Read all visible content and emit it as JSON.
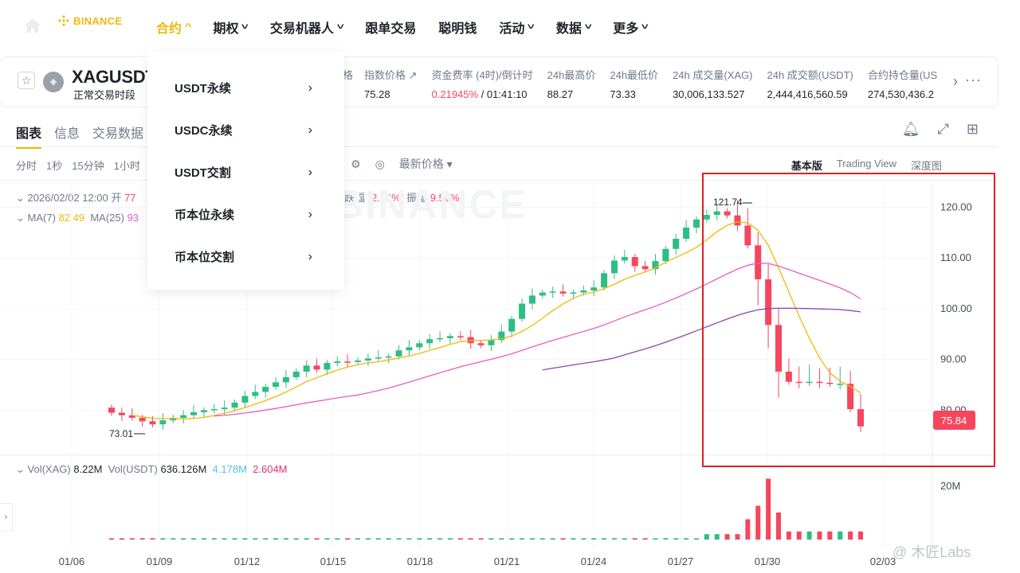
{
  "nav": {
    "logo": "BINANCE",
    "items": [
      {
        "label": "合约",
        "active": true,
        "has_menu": true
      },
      {
        "label": "期权",
        "has_menu": true
      },
      {
        "label": "交易机器人",
        "has_menu": true
      },
      {
        "label": "跟单交易",
        "has_menu": false
      },
      {
        "label": "聪明钱",
        "has_menu": false
      },
      {
        "label": "活动",
        "has_menu": true
      },
      {
        "label": "数据",
        "has_menu": true
      },
      {
        "label": "更多",
        "has_menu": true
      }
    ]
  },
  "dropdown": {
    "items": [
      "USDT永续",
      "USDC永续",
      "USDT交割",
      "币本位永续",
      "币本位交割"
    ]
  },
  "ticker": {
    "symbol": "XAGUSDT",
    "subtitle": "正常交易时段",
    "stats": [
      {
        "key": "指数价格 ↗",
        "value": "75.28"
      },
      {
        "key": "资金费率 (4时)/倒计时",
        "value": "0.21945%",
        "value2": " / 01:41:10"
      },
      {
        "key": "24h最高价",
        "value": "88.27"
      },
      {
        "key": "24h最低价",
        "value": "73.33"
      },
      {
        "key": "24h 成交量(XAG)",
        "value": "30,006,133.527"
      },
      {
        "key": "24h 成交额(USDT)",
        "value": "2,444,416,560.59"
      },
      {
        "key": "合约持仓量(US",
        "value": "274,530,436.2"
      }
    ],
    "partial_key": "格"
  },
  "panel": {
    "tabs": [
      "图表",
      "信息",
      "交易数据"
    ],
    "intervals": [
      "分时",
      "1秒",
      "15分钟",
      "1小时"
    ],
    "price_type": "最新价格",
    "views": [
      "基本版",
      "Trading View",
      "深度图"
    ],
    "ohlc": {
      "time": "2026/02/02 12:00",
      "open_label": "开",
      "open_value": "77"
    },
    "amp": {
      "change_label": "跌幅",
      "change_value": "-2.16%",
      "amp_label": "振幅",
      "amp_value": "9.52%"
    },
    "ma": {
      "ma7_label": "MA(7)",
      "ma7_value": "82.49",
      "ma25_label": "MA(25)",
      "ma25_value": "93"
    },
    "vol": {
      "xag_label": "Vol(XAG)",
      "xag_value": "8.22M",
      "usdt_label": "Vol(USDT)",
      "usdt_value": "636.126M",
      "ma1": "4.178M",
      "ma2": "2.604M"
    },
    "watermark": "BINANCE",
    "credit": "@ 木匠Labs"
  },
  "chart_data": {
    "type": "candlestick",
    "y_axis_ticks": [
      120,
      110,
      100,
      90,
      80
    ],
    "y_tick_labels": [
      "120.00",
      "110.00",
      "100.00",
      "90.00",
      "80.00"
    ],
    "ylim": [
      73,
      124
    ],
    "x_tick_labels": [
      "01/06",
      "01/09",
      "01/12",
      "01/15",
      "01/18",
      "01/21",
      "01/24",
      "01/27",
      "01/30",
      "02/03"
    ],
    "high_marker": "121.74",
    "low_marker": "73.01",
    "last_price": "75.84",
    "volume_tick": "20M",
    "colors": {
      "up": "#2ebd85",
      "down": "#f6465d",
      "ma7": "#f0b90b",
      "ma25": "#e35ec8",
      "ma99": "#8e44ad",
      "highlight": "#e02020"
    },
    "close_series": [
      79.5,
      79,
      78.5,
      77.8,
      77.2,
      78,
      78.5,
      79,
      79.6,
      80,
      80.2,
      80.5,
      81.5,
      82.8,
      83.6,
      84.6,
      85.5,
      86.5,
      87.6,
      88.8,
      88,
      89.3,
      89.6,
      89.5,
      89.8,
      90.2,
      90.4,
      90.6,
      91.8,
      92.4,
      93.2,
      94,
      94.2,
      94.6,
      94.4,
      93.2,
      92.8,
      93.8,
      95.5,
      98,
      101,
      102.6,
      103.2,
      103.4,
      103,
      103.2,
      103.6,
      104.2,
      107,
      109.5,
      110.2,
      108.4,
      107.8,
      109.4,
      111.8,
      113.8,
      116,
      117.6,
      118.5,
      119.2,
      118.4,
      116.4,
      112.5,
      105.8,
      96.8,
      87.6,
      85.6,
      85.4,
      85.6,
      85.4,
      85.2,
      85.2,
      80.2,
      76.8
    ]
  }
}
